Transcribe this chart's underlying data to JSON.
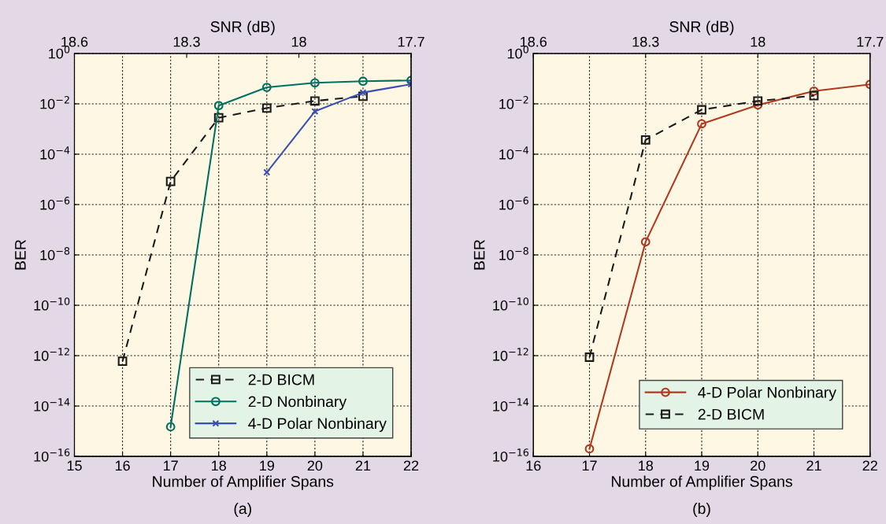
{
  "chart_data": [
    {
      "type": "line",
      "xlabel": "Number of Amplifier Spans",
      "ylabel": "BER",
      "x2label": "SNR (dB)",
      "log": "y",
      "grid": true,
      "legend": "bottom right",
      "xlim": [
        15,
        22
      ],
      "xticks": [
        15,
        16,
        17,
        18,
        19,
        20,
        21,
        22
      ],
      "x2lim": [
        18.6,
        17.7
      ],
      "x2ticks": [
        18.6,
        18.3,
        18,
        17.7
      ],
      "ylim": [
        1e-16,
        1
      ],
      "yticks": [
        {
          "value": 1e-16,
          "label": "10$^{−16}$"
        },
        {
          "value": 1e-14,
          "label": "10$^{−14}$"
        },
        {
          "value": 1e-12,
          "label": "10$^{−12}$"
        },
        {
          "value": 1e-10,
          "label": "10$^{−10}$"
        },
        {
          "value": 1e-08,
          "label": "10$^{−8}$"
        },
        {
          "value": 1e-06,
          "label": "10$^{−6}$"
        },
        {
          "value": 0.0001,
          "label": "10$^{−4}$"
        },
        {
          "value": 0.01,
          "label": "10$^{−2}$"
        },
        {
          "value": 1,
          "label": "10$^{0}$"
        }
      ],
      "annotations": [
        "(a)"
      ],
      "series": [
        {
          "name": "2-D BICM",
          "color": "#1a1a1a",
          "marker": "square",
          "line_style": "dashed",
          "x": [
            16,
            17,
            18,
            19,
            20,
            21
          ],
          "values": [
            6e-13,
            8.3e-06,
            0.0028,
            0.0068,
            0.013,
            0.02
          ]
        },
        {
          "name": "2-D Nonbinary",
          "color": "#007060",
          "marker": "circle",
          "line_style": "solid",
          "x": [
            17,
            18,
            19,
            20,
            21,
            22
          ],
          "values": [
            1.5e-15,
            0.0085,
            0.045,
            0.068,
            0.079,
            0.085
          ]
        },
        {
          "name": "4-D Polar Nonbinary",
          "color": "#3a4fb0",
          "marker": "cross",
          "line_style": "solid",
          "x": [
            19,
            20,
            21,
            22
          ],
          "values": [
            1.9e-05,
            0.005,
            0.028,
            0.06
          ]
        }
      ]
    },
    {
      "type": "line",
      "xlabel": "Number of Amplifier Spans",
      "ylabel": "BER",
      "x2label": "SNR (dB)",
      "log": "y",
      "grid": true,
      "legend": "bottom right",
      "xlim": [
        16,
        22
      ],
      "xticks": [
        16,
        17,
        18,
        19,
        20,
        21,
        22
      ],
      "x2lim": [
        18.6,
        17.7
      ],
      "x2ticks": [
        18.6,
        18.3,
        18,
        17.7
      ],
      "ylim": [
        1e-16,
        1
      ],
      "yticks": [
        {
          "value": 1e-16,
          "label": "10$^{−16}$"
        },
        {
          "value": 1e-14,
          "label": "10$^{−14}$"
        },
        {
          "value": 1e-12,
          "label": "10$^{−12}$"
        },
        {
          "value": 1e-10,
          "label": "10$^{−10}$"
        },
        {
          "value": 1e-08,
          "label": "10$^{−8}$"
        },
        {
          "value": 1e-06,
          "label": "10$^{−6}$"
        },
        {
          "value": 0.0001,
          "label": "10$^{−4}$"
        },
        {
          "value": 0.01,
          "label": "10$^{−2}$"
        },
        {
          "value": 1,
          "label": "10$^{0}$"
        }
      ],
      "annotations": [
        "(b)"
      ],
      "series": [
        {
          "name": "4-D Polar Nonbinary",
          "color": "#b03a20",
          "marker": "circle",
          "line_style": "solid",
          "x": [
            17,
            18,
            19,
            20,
            21,
            22
          ],
          "values": [
            2e-16,
            3.3e-08,
            0.0016,
            0.009,
            0.032,
            0.059
          ]
        },
        {
          "name": "2-D BICM",
          "color": "#1a1a1a",
          "marker": "square",
          "line_style": "dashed",
          "x": [
            17,
            18,
            19,
            20,
            21
          ],
          "values": [
            8.7e-13,
            0.00037,
            0.0058,
            0.013,
            0.021
          ]
        }
      ]
    }
  ]
}
